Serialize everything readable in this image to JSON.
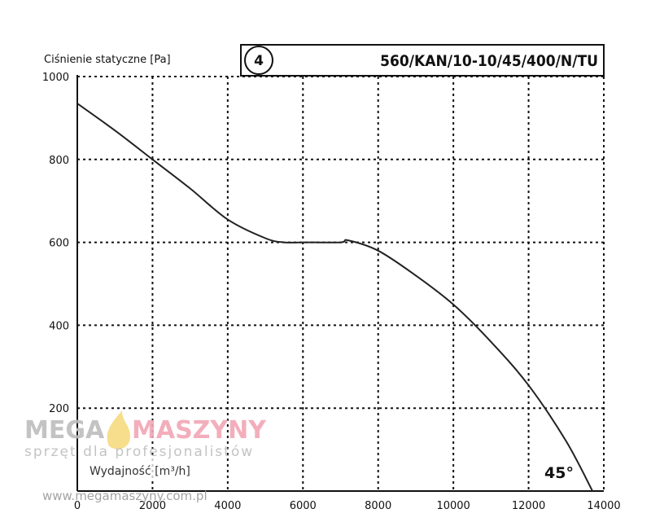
{
  "chart_data": {
    "type": "line",
    "title": "560/KAN/10-10/45/400/N/TU",
    "curve_number": "4",
    "blade_angle": "45°",
    "ylabel": "Ciśnienie statyczne [Pa]",
    "xlabel": "Wydajność [m³/h]",
    "xlim": [
      0,
      14000
    ],
    "ylim": [
      0,
      1000
    ],
    "x_ticks": [
      "0",
      "2000",
      "4000",
      "6000",
      "8000",
      "10000",
      "12000",
      "14000"
    ],
    "y_ticks": [
      "1000",
      "800",
      "600",
      "400",
      "200"
    ],
    "grid": true,
    "series": [
      {
        "x": [
          0,
          1000,
          2000,
          3000,
          4000,
          5000,
          5500,
          6000,
          7000,
          7200,
          8000,
          9000,
          10000,
          11000,
          12000,
          13000,
          13700
        ],
        "y": [
          935,
          870,
          800,
          730,
          655,
          610,
          600,
          600,
          600,
          605,
          580,
          520,
          450,
          360,
          255,
          120,
          0
        ]
      }
    ]
  },
  "watermark": {
    "brand_left": "MEGA",
    "brand_right": "MASZYNY",
    "tagline": "sprzęt dla profesjonalistów",
    "url": "www.megamaszyny.com.pl"
  },
  "colors": {
    "curve": "#222222",
    "grid": "#111111",
    "watermark_grey": "#bdbdbd",
    "watermark_pink": "#f2a6b4",
    "watermark_flame": "#f5d36a"
  }
}
